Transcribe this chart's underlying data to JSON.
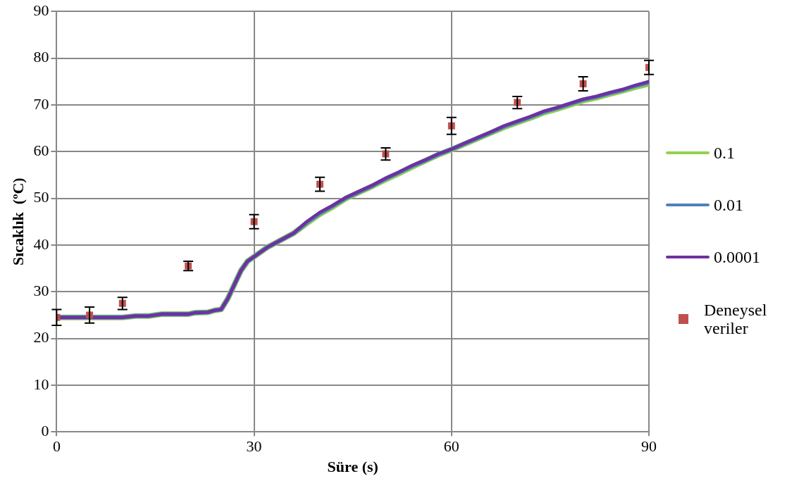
{
  "chart_data": {
    "type": "line",
    "xlabel": "Süre (s)",
    "ylabel": "Sıcaklık  (ºC)",
    "xlim": [
      0,
      90
    ],
    "xticks": [
      0,
      30,
      60,
      90
    ],
    "ylim": [
      0,
      90
    ],
    "yticks": [
      0,
      10,
      20,
      30,
      40,
      50,
      60,
      70,
      80,
      90
    ],
    "grid": true,
    "legend": "right",
    "marker": "none",
    "line_style": "solid",
    "series": [
      {
        "name": "0.1",
        "color": "#92d050",
        "x": [
          0,
          10,
          12,
          14,
          16,
          20,
          21,
          23,
          24,
          25,
          26,
          27,
          28,
          29,
          30,
          32,
          34,
          36,
          38,
          40,
          42,
          44,
          46,
          48,
          50,
          52,
          54,
          56,
          58,
          60,
          62,
          64,
          66,
          68,
          70,
          72,
          74,
          76,
          78,
          80,
          82,
          84,
          86,
          88,
          90
        ],
        "values": [
          24.5,
          24.5,
          24.8,
          24.8,
          25.2,
          25.2,
          25.5,
          25.6,
          26,
          26.2,
          28.5,
          31.5,
          34.5,
          36.5,
          37.5,
          39.5,
          41,
          42.5,
          44.6,
          46.6,
          48.2,
          50,
          51.3,
          52.6,
          54,
          55.3,
          56.7,
          58,
          59.3,
          60.4,
          61.6,
          62.8,
          64,
          65.2,
          66.2,
          67.2,
          68.3,
          69.1,
          70,
          70.9,
          71.5,
          72.3,
          73,
          73.8,
          74.5
        ]
      },
      {
        "name": "0.01",
        "color": "#4f81bd",
        "x": [
          0,
          10,
          12,
          14,
          16,
          20,
          21,
          23,
          24,
          25,
          26,
          27,
          28,
          29,
          30,
          32,
          34,
          36,
          38,
          40,
          42,
          44,
          46,
          48,
          50,
          52,
          54,
          56,
          58,
          60,
          62,
          64,
          66,
          68,
          70,
          72,
          74,
          76,
          78,
          80,
          82,
          84,
          86,
          88,
          90
        ],
        "values": [
          24.5,
          24.5,
          24.8,
          24.8,
          25.2,
          25.2,
          25.5,
          25.6,
          26,
          26.2,
          28.5,
          31.5,
          34.5,
          36.5,
          37.5,
          39.5,
          41,
          42.5,
          44.8,
          46.8,
          48.4,
          50.1,
          51.4,
          52.7,
          54.2,
          55.5,
          56.9,
          58.1,
          59.4,
          60.5,
          61.7,
          62.9,
          64.1,
          65.4,
          66.4,
          67.4,
          68.5,
          69.3,
          70.2,
          71.1,
          71.7,
          72.5,
          73.2,
          74.1,
          74.8
        ]
      },
      {
        "name": "0.0001",
        "color": "#7030a0",
        "x": [
          0,
          10,
          12,
          14,
          16,
          20,
          21,
          23,
          24,
          25,
          26,
          27,
          28,
          29,
          30,
          32,
          34,
          36,
          38,
          40,
          42,
          44,
          46,
          48,
          50,
          52,
          54,
          56,
          58,
          60,
          62,
          64,
          66,
          68,
          70,
          72,
          74,
          76,
          78,
          80,
          82,
          84,
          86,
          88,
          90
        ],
        "values": [
          24.5,
          24.5,
          24.8,
          24.8,
          25.2,
          25.2,
          25.5,
          25.6,
          26,
          26.2,
          28.5,
          31.5,
          34.5,
          36.5,
          37.5,
          39.5,
          41,
          42.5,
          45,
          47,
          48.5,
          50.2,
          51.5,
          52.8,
          54.3,
          55.6,
          57,
          58.2,
          59.5,
          60.5,
          61.8,
          63,
          64.2,
          65.5,
          66.5,
          67.5,
          68.6,
          69.4,
          70.3,
          71.2,
          71.8,
          72.6,
          73.3,
          74.2,
          75
        ]
      },
      {
        "name": "Deneysel veriler",
        "type": "scatter",
        "marker": "square",
        "color": "#c0504d",
        "x": [
          0,
          5,
          10,
          20,
          30,
          40,
          50,
          60,
          70,
          80,
          90
        ],
        "values": [
          24.5,
          25,
          27.5,
          35.5,
          45,
          53,
          59.5,
          65.5,
          70.5,
          74.5,
          78
        ],
        "errors": [
          1.7,
          1.7,
          1.3,
          1,
          1.5,
          1.5,
          1.3,
          1.8,
          1.3,
          1.5,
          1.5
        ]
      }
    ]
  }
}
